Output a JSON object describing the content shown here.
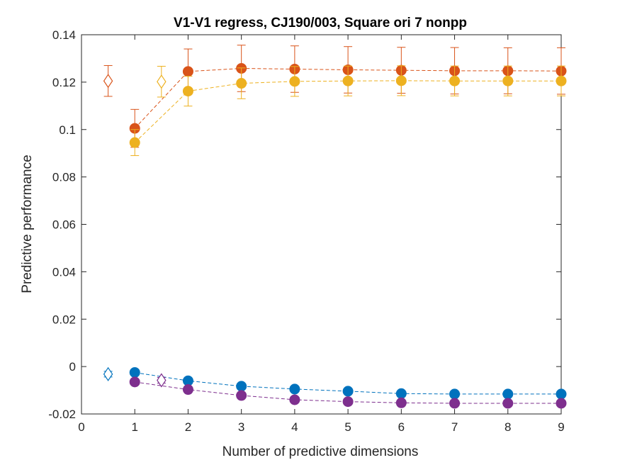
{
  "chart_data": {
    "type": "scatter",
    "title": "V1-V1 regress, CJ190/003, Square ori 7 nonpp",
    "xlabel": "Number of predictive dimensions",
    "ylabel": "Predictive performance",
    "xlim": [
      0,
      9
    ],
    "ylim": [
      -0.02,
      0.14
    ],
    "xticks": [
      0,
      1,
      2,
      3,
      4,
      5,
      6,
      7,
      8,
      9
    ],
    "xtick_labels": [
      "0",
      "1",
      "2",
      "3",
      "4",
      "5",
      "6",
      "7",
      "8",
      "9"
    ],
    "yticks": [
      -0.02,
      0,
      0.02,
      0.04,
      0.06,
      0.08,
      0.1,
      0.12,
      0.14
    ],
    "ytick_labels": [
      "-0.02",
      "0",
      "0.02",
      "0.04",
      "0.06",
      "0.08",
      "0.1",
      "0.12",
      "0.14"
    ],
    "grid": false,
    "series": [
      {
        "color": "#D95319",
        "x": [
          1,
          2,
          3,
          4,
          5,
          6,
          7,
          8,
          9
        ],
        "y": [
          0.1005,
          0.1245,
          0.1258,
          0.1255,
          0.1252,
          0.125,
          0.1248,
          0.1248,
          0.1247
        ],
        "err": [
          0.008,
          0.0095,
          0.0098,
          0.0098,
          0.0098,
          0.0097,
          0.0098,
          0.0097,
          0.0098
        ],
        "ref": {
          "x": 0.5,
          "y": 0.1205,
          "err": 0.0065
        }
      },
      {
        "color": "#EDB120",
        "x": [
          1,
          2,
          3,
          4,
          5,
          6,
          7,
          8,
          9
        ],
        "y": [
          0.0945,
          0.1162,
          0.1195,
          0.1203,
          0.1205,
          0.1206,
          0.1205,
          0.1205,
          0.1205
        ],
        "err": [
          0.0055,
          0.0063,
          0.0065,
          0.0063,
          0.0063,
          0.0063,
          0.0063,
          0.0063,
          0.0063
        ],
        "ref": {
          "x": 1.5,
          "y": 0.1202,
          "err": 0.0065
        }
      },
      {
        "color": "#0072BD",
        "x": [
          1,
          2,
          3,
          4,
          5,
          6,
          7,
          8,
          9
        ],
        "y": [
          -0.0025,
          -0.006,
          -0.0083,
          -0.0095,
          -0.0104,
          -0.0114,
          -0.0116,
          -0.0116,
          -0.0116
        ],
        "err": [
          0.0007,
          0.0007,
          0.0007,
          0.0007,
          0.0007,
          0.0007,
          0.0007,
          0.0007,
          0.0007
        ],
        "ref": {
          "x": 0.5,
          "y": -0.0032,
          "err": 0.0012
        }
      },
      {
        "color": "#7E2F8E",
        "x": [
          1,
          2,
          3,
          4,
          5,
          6,
          7,
          8,
          9
        ],
        "y": [
          -0.0065,
          -0.0097,
          -0.0122,
          -0.014,
          -0.0148,
          -0.0153,
          -0.0155,
          -0.0155,
          -0.0155
        ],
        "err": [
          0.0007,
          0.0007,
          0.0007,
          0.0007,
          0.0007,
          0.0007,
          0.0007,
          0.0007,
          0.0007
        ],
        "ref": {
          "x": 1.5,
          "y": -0.0058,
          "err": 0.0012
        }
      }
    ]
  }
}
